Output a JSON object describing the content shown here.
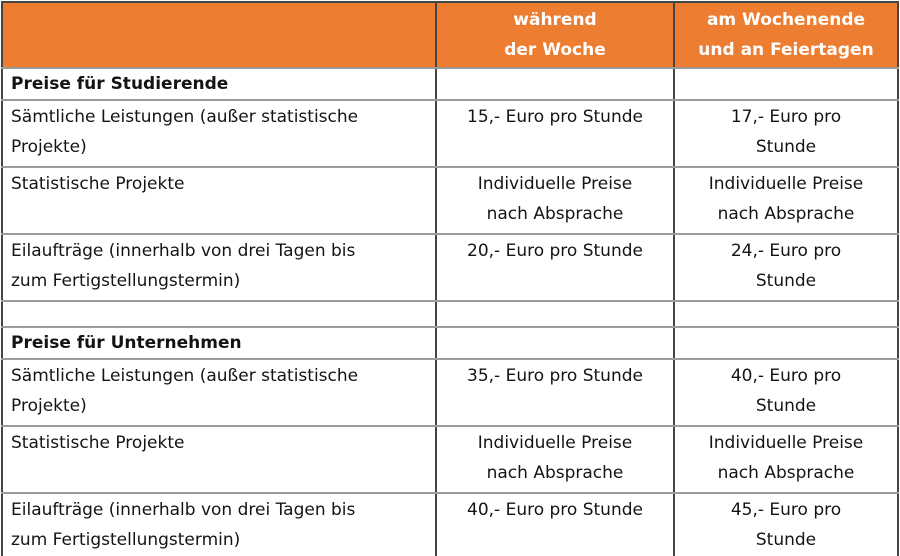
{
  "theme": {
    "accent": "#ED7D31",
    "header_text": "#FFFFFF",
    "body_text": "#141414",
    "h_border": "#9B9B9B",
    "v_border": "#454545",
    "bottom_rule": "#E59A55"
  },
  "table": {
    "columns": [
      {
        "id": "service",
        "label": ""
      },
      {
        "id": "weekday",
        "label": "während\nder Woche"
      },
      {
        "id": "weekend",
        "label": "am Wochenende\nund an Feiertagen"
      }
    ],
    "rows": [
      {
        "type": "section",
        "cells": [
          "Preise für Studierende",
          "",
          ""
        ]
      },
      {
        "type": "data",
        "cells": [
          "Sämtliche Leistungen (außer statistische\nProjekte)",
          "15,- Euro pro Stunde",
          "17,- Euro pro\nStunde"
        ]
      },
      {
        "type": "data",
        "cells": [
          "Statistische Projekte",
          "Individuelle Preise\nnach Absprache",
          "Individuelle Preise\nnach Absprache"
        ]
      },
      {
        "type": "data",
        "cells": [
          "Eilaufträge (innerhalb von drei Tagen bis\nzum Fertigstellungstermin)",
          "20,- Euro pro Stunde",
          "24,- Euro pro\nStunde"
        ]
      },
      {
        "type": "spacer",
        "cells": [
          "",
          "",
          ""
        ]
      },
      {
        "type": "section",
        "cells": [
          "Preise für Unternehmen",
          "",
          ""
        ]
      },
      {
        "type": "data",
        "cells": [
          "Sämtliche Leistungen (außer statistische\nProjekte)",
          "35,- Euro pro Stunde",
          "40,- Euro pro\nStunde"
        ]
      },
      {
        "type": "data",
        "cells": [
          "Statistische Projekte",
          "Individuelle Preise\nnach Absprache",
          "Individuelle Preise\nnach Absprache"
        ]
      },
      {
        "type": "data",
        "cells": [
          "Eilaufträge (innerhalb von drei Tagen bis\nzum Fertigstellungstermin)",
          "40,- Euro pro Stunde",
          "45,- Euro pro\nStunde"
        ]
      }
    ]
  }
}
